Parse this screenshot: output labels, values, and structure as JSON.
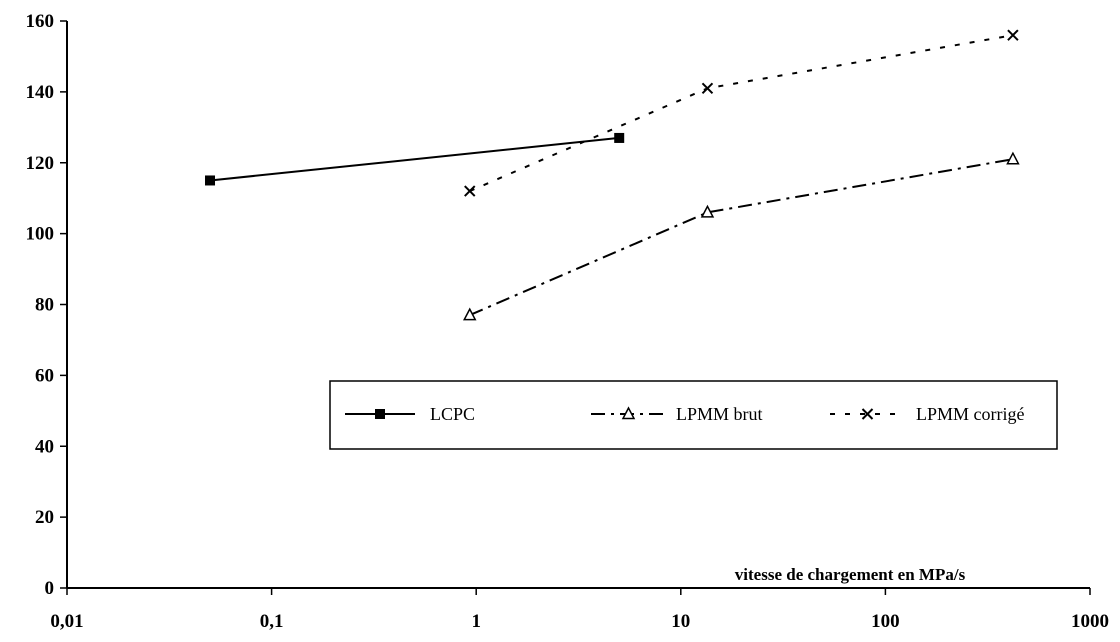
{
  "chart_data": {
    "type": "line",
    "x_scale": "log",
    "xlim": [
      0.01,
      1000
    ],
    "ylim": [
      0,
      160
    ],
    "x_ticks": [
      0.01,
      0.1,
      1,
      10,
      100,
      1000
    ],
    "x_tick_labels": [
      "0,01",
      "0,1",
      "1",
      "10",
      "100",
      "1000"
    ],
    "y_ticks": [
      0,
      20,
      40,
      60,
      80,
      100,
      120,
      140,
      160
    ],
    "y_tick_labels": [
      "0",
      "20",
      "40",
      "60",
      "80",
      "100",
      "120",
      "140",
      "160"
    ],
    "xlabel": "vitesse de chargement en MPa/s",
    "ylabel": "",
    "grid": false,
    "legend_position": "inside-lower-right",
    "series": [
      {
        "name": "LCPC",
        "line_style": "solid",
        "marker": "square",
        "color": "#000000",
        "points": [
          {
            "x": 0.05,
            "y": 115
          },
          {
            "x": 5,
            "y": 127
          }
        ]
      },
      {
        "name": "LPMM brut",
        "line_style": "dash-dot",
        "marker": "triangle",
        "color": "#000000",
        "points": [
          {
            "x": 0.93,
            "y": 77
          },
          {
            "x": 13.5,
            "y": 106
          },
          {
            "x": 420,
            "y": 121
          }
        ]
      },
      {
        "name": "LPMM corrigé",
        "line_style": "dotted",
        "marker": "x",
        "color": "#000000",
        "points": [
          {
            "x": 0.93,
            "y": 112
          },
          {
            "x": 13.5,
            "y": 141
          },
          {
            "x": 420,
            "y": 156
          }
        ]
      }
    ]
  }
}
